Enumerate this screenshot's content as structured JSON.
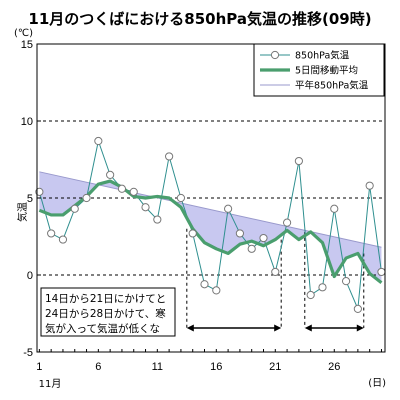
{
  "chart_data": {
    "type": "line",
    "title": "11月のつくばにおける850hPa気温の推移(09時)",
    "unit_label": "(℃)",
    "ylabel": "気温",
    "x_unit_label": "(日)",
    "month_label": "11月",
    "ylim": [
      -5,
      15
    ],
    "y_ticks": [
      -5,
      0,
      5,
      10,
      15
    ],
    "xlim": [
      1,
      30
    ],
    "x_ticks": [
      1,
      6,
      11,
      16,
      21,
      26
    ],
    "grid": "dashed horizontal at 0, 5, 10",
    "legend_position": "top-right",
    "series": [
      {
        "name": "850hPa気温",
        "style": "thin line with open circle markers",
        "color": "#2f8f8f",
        "x": [
          1,
          2,
          3,
          4,
          5,
          6,
          7,
          8,
          9,
          10,
          11,
          12,
          13,
          14,
          15,
          16,
          17,
          18,
          19,
          20,
          21,
          22,
          23,
          24,
          25,
          26,
          27,
          28,
          29,
          30
        ],
        "values": [
          5.4,
          2.7,
          2.3,
          4.3,
          5.0,
          8.7,
          6.5,
          5.6,
          5.4,
          4.4,
          3.6,
          7.7,
          5.0,
          2.7,
          -0.6,
          -1.0,
          4.3,
          2.7,
          1.7,
          2.4,
          0.2,
          3.4,
          7.4,
          -1.3,
          -0.8,
          4.3,
          -0.4,
          -2.2,
          5.8,
          0.2
        ]
      },
      {
        "name": "5日間移動平均",
        "style": "thick line",
        "color": "#4a9e6e",
        "x": [
          1,
          2,
          3,
          4,
          5,
          6,
          7,
          8,
          9,
          10,
          11,
          12,
          13,
          14,
          15,
          16,
          17,
          18,
          19,
          20,
          21,
          22,
          23,
          24,
          25,
          26,
          27,
          28,
          29,
          30
        ],
        "values": [
          4.2,
          3.9,
          3.9,
          4.5,
          5.1,
          5.9,
          6.1,
          5.7,
          5.1,
          5.0,
          5.1,
          5.0,
          4.4,
          3.0,
          2.1,
          1.7,
          1.4,
          2.0,
          2.2,
          1.9,
          2.3,
          2.9,
          2.3,
          2.8,
          2.1,
          -0.1,
          1.1,
          1.4,
          0.1,
          -0.5
        ]
      },
      {
        "name": "平年850hPa気温",
        "style": "thin line with shaded area to moving average",
        "color": "#9999cc",
        "fill": "#c8c8f0",
        "x": [
          1,
          30
        ],
        "values": [
          6.7,
          1.8
        ]
      }
    ],
    "annotation": {
      "lines": [
        "14日から21日にかけてと",
        "24日から28日かけて、寒",
        "気が入って気温が低くな"
      ],
      "periods": [
        [
          14,
          21
        ],
        [
          24,
          28
        ]
      ]
    }
  }
}
